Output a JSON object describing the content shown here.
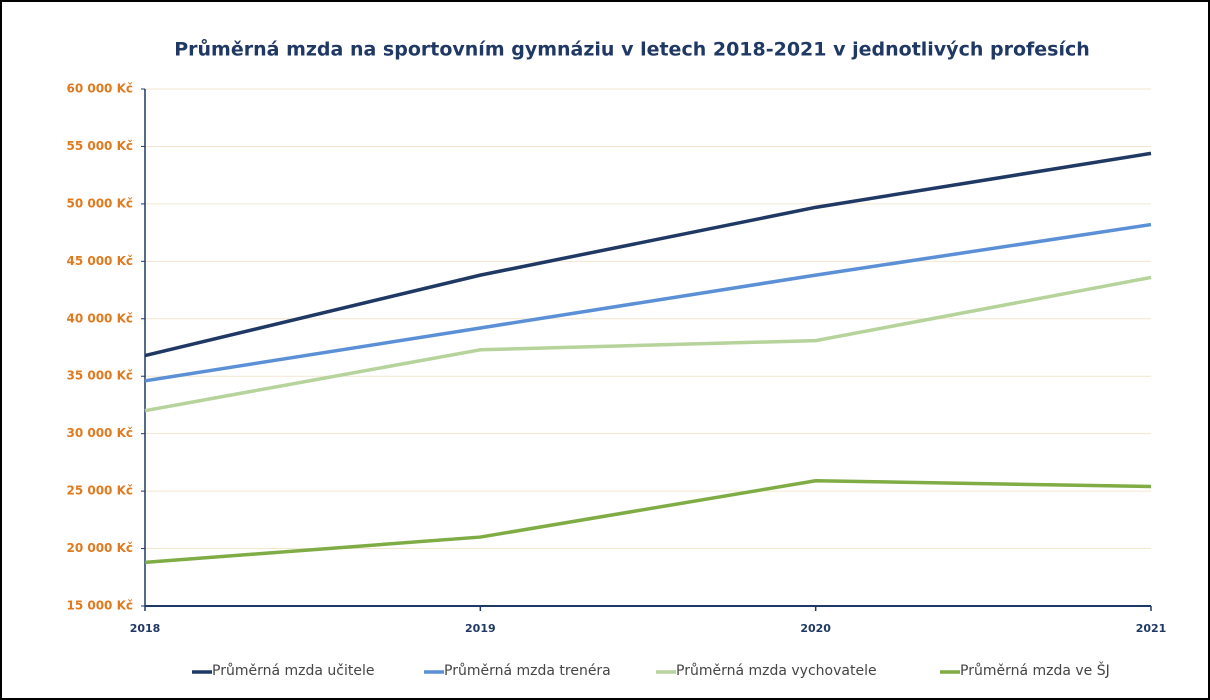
{
  "chart_data": {
    "type": "line",
    "title": "Průměrná mzda na sportovním gymnáziu v letech 2018-2021 v jednotlivých profesích",
    "categories": [
      "2018",
      "2019",
      "2020",
      "2021"
    ],
    "series": [
      {
        "name": "Průměrná mzda učitele",
        "color": "#1f3864",
        "values": [
          36800,
          43800,
          49700,
          54400
        ]
      },
      {
        "name": "Průměrná mzda trenéra",
        "color": "#5b8fd6",
        "values": [
          34600,
          39200,
          43800,
          48200
        ]
      },
      {
        "name": "Průměrná mzda vychovatele",
        "color": "#b5d39a",
        "values": [
          32000,
          37300,
          38100,
          43600
        ]
      },
      {
        "name": "Průměrná mzda ve ŠJ",
        "color": "#7fac45",
        "values": [
          18800,
          21000,
          25900,
          25400
        ]
      }
    ],
    "ylim": [
      15000,
      60000
    ],
    "yticks": [
      {
        "value": 15000,
        "label": "15 000 Kč"
      },
      {
        "value": 20000,
        "label": "20 000 Kč"
      },
      {
        "value": 25000,
        "label": "25 000 Kč"
      },
      {
        "value": 30000,
        "label": "30 000 Kč"
      },
      {
        "value": 35000,
        "label": "35 000 Kč"
      },
      {
        "value": 40000,
        "label": "40 000 Kč"
      },
      {
        "value": 45000,
        "label": "45 000 Kč"
      },
      {
        "value": 50000,
        "label": "50 000 Kč"
      },
      {
        "value": 55000,
        "label": "55 000 Kč"
      },
      {
        "value": 60000,
        "label": "60 000 Kč"
      }
    ],
    "grid": true,
    "legend": "bottom"
  }
}
